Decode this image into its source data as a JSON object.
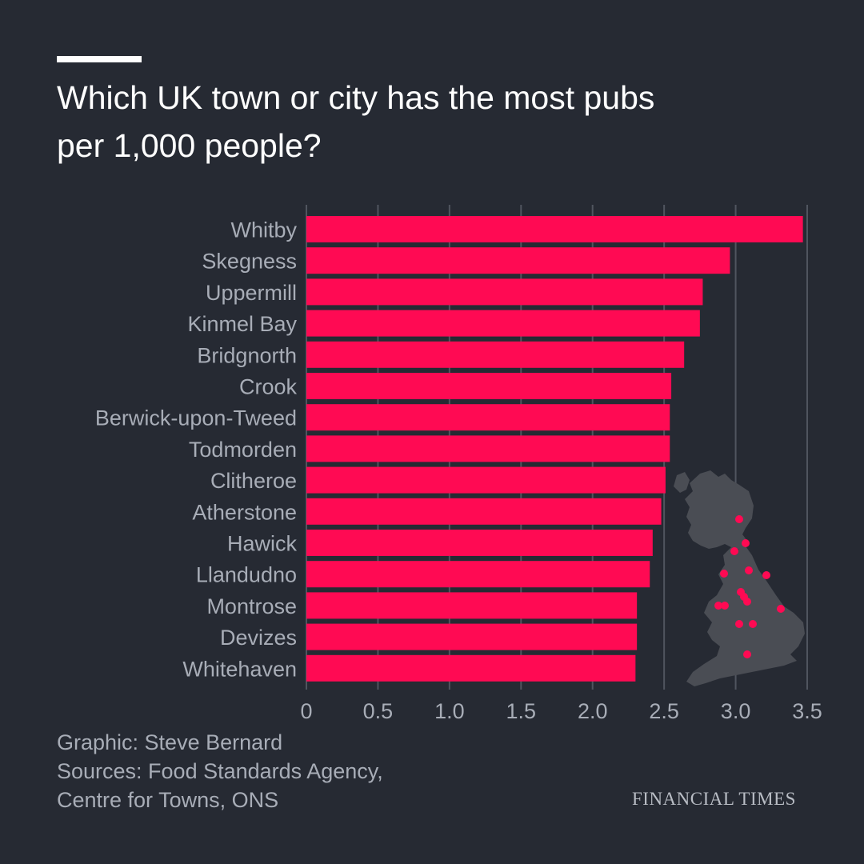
{
  "title_lines": [
    "Which UK town or city has the most pubs",
    "per 1,000 people?"
  ],
  "footer": {
    "credit": "Graphic: Steve Bernard",
    "sources_line1": "Sources: Food Standards Agency,",
    "sources_line2": "Centre for Towns, ONS"
  },
  "brand": "FINANCIAL TIMES",
  "colors": {
    "background": "#262a33",
    "bar": "#ff0a53",
    "map": "#4a4d54",
    "text": "#a8adb7"
  },
  "chart_data": {
    "type": "bar",
    "orientation": "horizontal",
    "title": "Which UK town or city has the most pubs per 1,000 people?",
    "categories": [
      "Whitby",
      "Skegness",
      "Uppermill",
      "Kinmel Bay",
      "Bridgnorth",
      "Crook",
      "Berwick-upon-Tweed",
      "Todmorden",
      "Clitheroe",
      "Atherstone",
      "Hawick",
      "Llandudno",
      "Montrose",
      "Devizes",
      "Whitehaven"
    ],
    "values": [
      3.47,
      2.96,
      2.77,
      2.75,
      2.64,
      2.55,
      2.54,
      2.54,
      2.51,
      2.48,
      2.42,
      2.4,
      2.31,
      2.31,
      2.3
    ],
    "xlim": [
      0,
      3.5
    ],
    "xticks": [
      0,
      0.5,
      1.0,
      1.5,
      2.0,
      2.5,
      3.0,
      3.5
    ],
    "xtick_labels": [
      "0",
      "0.5",
      "1.0",
      "1.5",
      "2.0",
      "2.5",
      "3.0",
      "3.5"
    ],
    "grid": true,
    "xlabel": "",
    "ylabel": "",
    "inset": "map of Great Britain with town locations marked as dots"
  }
}
